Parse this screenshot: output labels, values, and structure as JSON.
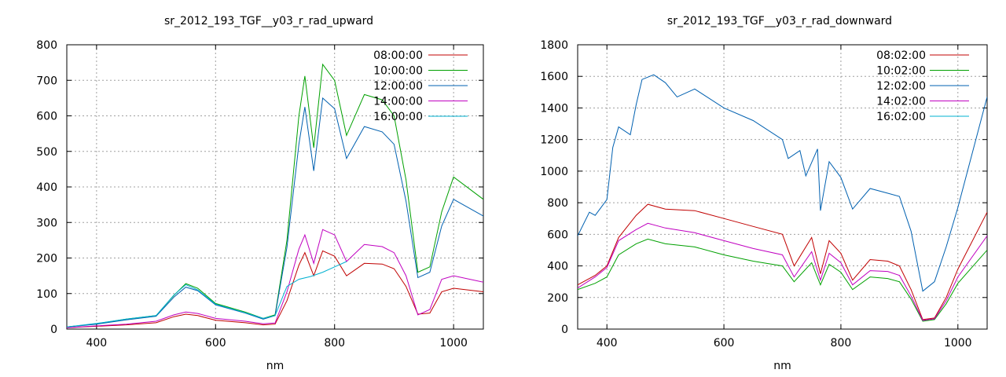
{
  "chart_data": [
    {
      "type": "line",
      "title": "sr_2012_193_TGF__y03_r_rad_upward",
      "xlabel": "nm",
      "ylabel": "",
      "xlim": [
        350,
        1050
      ],
      "ylim": [
        0,
        800
      ],
      "xticks": [
        400,
        600,
        800,
        1000
      ],
      "yticks": [
        0,
        100,
        200,
        300,
        400,
        500,
        600,
        700,
        800
      ],
      "grid": true,
      "legend": "top-right",
      "series": [
        {
          "name": "08:00:00",
          "color": "#c00000",
          "points": [
            [
              350,
              4
            ],
            [
              400,
              8
            ],
            [
              450,
              12
            ],
            [
              500,
              18
            ],
            [
              530,
              35
            ],
            [
              550,
              42
            ],
            [
              570,
              38
            ],
            [
              600,
              25
            ],
            [
              650,
              18
            ],
            [
              680,
              12
            ],
            [
              700,
              14
            ],
            [
              720,
              80
            ],
            [
              740,
              180
            ],
            [
              750,
              215
            ],
            [
              765,
              150
            ],
            [
              780,
              220
            ],
            [
              800,
              205
            ],
            [
              820,
              150
            ],
            [
              850,
              185
            ],
            [
              880,
              183
            ],
            [
              900,
              170
            ],
            [
              920,
              120
            ],
            [
              940,
              42
            ],
            [
              960,
              45
            ],
            [
              980,
              105
            ],
            [
              1000,
              115
            ],
            [
              1050,
              105
            ]
          ]
        },
        {
          "name": "10:00:00",
          "color": "#00a000",
          "points": [
            [
              350,
              6
            ],
            [
              400,
              15
            ],
            [
              450,
              28
            ],
            [
              500,
              38
            ],
            [
              530,
              95
            ],
            [
              550,
              128
            ],
            [
              570,
              115
            ],
            [
              600,
              72
            ],
            [
              650,
              48
            ],
            [
              680,
              30
            ],
            [
              700,
              40
            ],
            [
              720,
              250
            ],
            [
              740,
              600
            ],
            [
              750,
              712
            ],
            [
              765,
              510
            ],
            [
              780,
              745
            ],
            [
              800,
              700
            ],
            [
              820,
              545
            ],
            [
              850,
              660
            ],
            [
              880,
              645
            ],
            [
              900,
              600
            ],
            [
              920,
              420
            ],
            [
              940,
              160
            ],
            [
              960,
              175
            ],
            [
              980,
              330
            ],
            [
              1000,
              428
            ],
            [
              1050,
              365
            ]
          ]
        },
        {
          "name": "12:00:00",
          "color": "#0060b0",
          "points": [
            [
              350,
              6
            ],
            [
              400,
              14
            ],
            [
              450,
              26
            ],
            [
              500,
              36
            ],
            [
              530,
              90
            ],
            [
              550,
              118
            ],
            [
              570,
              108
            ],
            [
              600,
              68
            ],
            [
              650,
              45
            ],
            [
              680,
              28
            ],
            [
              700,
              38
            ],
            [
              720,
              230
            ],
            [
              740,
              520
            ],
            [
              750,
              625
            ],
            [
              765,
              445
            ],
            [
              780,
              650
            ],
            [
              800,
              620
            ],
            [
              820,
              480
            ],
            [
              850,
              570
            ],
            [
              880,
              555
            ],
            [
              900,
              520
            ],
            [
              920,
              360
            ],
            [
              940,
              145
            ],
            [
              960,
              160
            ],
            [
              980,
              290
            ],
            [
              1000,
              365
            ],
            [
              1050,
              318
            ]
          ]
        },
        {
          "name": "14:00:00",
          "color": "#c000c0",
          "points": [
            [
              350,
              4
            ],
            [
              400,
              9
            ],
            [
              450,
              14
            ],
            [
              500,
              22
            ],
            [
              530,
              40
            ],
            [
              550,
              48
            ],
            [
              570,
              44
            ],
            [
              600,
              30
            ],
            [
              650,
              22
            ],
            [
              680,
              15
            ],
            [
              700,
              17
            ],
            [
              720,
              105
            ],
            [
              740,
              225
            ],
            [
              750,
              265
            ],
            [
              765,
              185
            ],
            [
              780,
              280
            ],
            [
              800,
              265
            ],
            [
              820,
              190
            ],
            [
              850,
              238
            ],
            [
              880,
              232
            ],
            [
              900,
              215
            ],
            [
              920,
              150
            ],
            [
              940,
              40
            ],
            [
              960,
              55
            ],
            [
              980,
              140
            ],
            [
              1000,
              150
            ],
            [
              1050,
              132
            ]
          ]
        },
        {
          "name": "16:00:00",
          "color": "#00b0d0",
          "points": [
            [
              350,
              6
            ],
            [
              400,
              16
            ],
            [
              450,
              28
            ],
            [
              500,
              38
            ],
            [
              530,
              96
            ],
            [
              550,
              125
            ],
            [
              570,
              110
            ],
            [
              600,
              70
            ],
            [
              650,
              46
            ],
            [
              680,
              30
            ],
            [
              700,
              38
            ],
            [
              720,
              120
            ],
            [
              740,
              140
            ],
            [
              760,
              148
            ],
            [
              780,
              160
            ],
            [
              800,
              175
            ],
            [
              820,
              190
            ]
          ]
        }
      ]
    },
    {
      "type": "line",
      "title": "sr_2012_193_TGF__y03_r_rad_downward",
      "xlabel": "nm",
      "ylabel": "",
      "xlim": [
        350,
        1050
      ],
      "ylim": [
        0,
        1800
      ],
      "xticks": [
        400,
        600,
        800,
        1000
      ],
      "yticks": [
        0,
        200,
        400,
        600,
        800,
        1000,
        1200,
        1400,
        1600,
        1800
      ],
      "grid": true,
      "legend": "top-right",
      "series": [
        {
          "name": "08:02:00",
          "color": "#c00000",
          "points": [
            [
              350,
              280
            ],
            [
              380,
              340
            ],
            [
              400,
              400
            ],
            [
              420,
              580
            ],
            [
              450,
              720
            ],
            [
              470,
              790
            ],
            [
              500,
              760
            ],
            [
              550,
              750
            ],
            [
              600,
              700
            ],
            [
              650,
              650
            ],
            [
              700,
              600
            ],
            [
              720,
              400
            ],
            [
              750,
              580
            ],
            [
              765,
              350
            ],
            [
              780,
              560
            ],
            [
              800,
              480
            ],
            [
              820,
              310
            ],
            [
              850,
              440
            ],
            [
              880,
              430
            ],
            [
              900,
              400
            ],
            [
              920,
              250
            ],
            [
              940,
              60
            ],
            [
              960,
              70
            ],
            [
              980,
              200
            ],
            [
              1000,
              380
            ],
            [
              1050,
              740
            ]
          ]
        },
        {
          "name": "10:02:00",
          "color": "#00a000",
          "points": [
            [
              350,
              250
            ],
            [
              380,
              290
            ],
            [
              400,
              330
            ],
            [
              420,
              470
            ],
            [
              450,
              540
            ],
            [
              470,
              570
            ],
            [
              500,
              540
            ],
            [
              550,
              520
            ],
            [
              600,
              470
            ],
            [
              650,
              430
            ],
            [
              700,
              400
            ],
            [
              720,
              300
            ],
            [
              750,
              420
            ],
            [
              765,
              280
            ],
            [
              780,
              410
            ],
            [
              800,
              360
            ],
            [
              820,
              250
            ],
            [
              850,
              330
            ],
            [
              880,
              320
            ],
            [
              900,
              300
            ],
            [
              920,
              190
            ],
            [
              940,
              50
            ],
            [
              960,
              60
            ],
            [
              980,
              160
            ],
            [
              1000,
              290
            ],
            [
              1050,
              500
            ]
          ]
        },
        {
          "name": "12:02:00",
          "color": "#0060b0",
          "points": [
            [
              350,
              590
            ],
            [
              370,
              740
            ],
            [
              380,
              720
            ],
            [
              400,
              820
            ],
            [
              410,
              1150
            ],
            [
              420,
              1280
            ],
            [
              440,
              1230
            ],
            [
              450,
              1420
            ],
            [
              460,
              1580
            ],
            [
              480,
              1610
            ],
            [
              500,
              1560
            ],
            [
              520,
              1470
            ],
            [
              550,
              1520
            ],
            [
              600,
              1400
            ],
            [
              650,
              1320
            ],
            [
              700,
              1200
            ],
            [
              710,
              1080
            ],
            [
              730,
              1130
            ],
            [
              740,
              970
            ],
            [
              760,
              1140
            ],
            [
              765,
              750
            ],
            [
              780,
              1060
            ],
            [
              800,
              960
            ],
            [
              820,
              760
            ],
            [
              850,
              890
            ],
            [
              880,
              860
            ],
            [
              900,
              840
            ],
            [
              920,
              620
            ],
            [
              940,
              240
            ],
            [
              960,
              300
            ],
            [
              980,
              520
            ],
            [
              1000,
              770
            ],
            [
              1050,
              1470
            ]
          ]
        },
        {
          "name": "14:02:00",
          "color": "#c000c0",
          "points": [
            [
              350,
              260
            ],
            [
              380,
              330
            ],
            [
              400,
              390
            ],
            [
              420,
              560
            ],
            [
              450,
              630
            ],
            [
              470,
              670
            ],
            [
              500,
              640
            ],
            [
              550,
              610
            ],
            [
              600,
              560
            ],
            [
              650,
              510
            ],
            [
              700,
              470
            ],
            [
              720,
              330
            ],
            [
              750,
              490
            ],
            [
              765,
              310
            ],
            [
              780,
              480
            ],
            [
              800,
              420
            ],
            [
              820,
              280
            ],
            [
              850,
              370
            ],
            [
              880,
              365
            ],
            [
              900,
              340
            ],
            [
              920,
              210
            ],
            [
              940,
              55
            ],
            [
              960,
              65
            ],
            [
              980,
              180
            ],
            [
              1000,
              330
            ],
            [
              1050,
              590
            ]
          ]
        },
        {
          "name": "16:02:00",
          "color": "#00b0d0",
          "points": []
        }
      ]
    }
  ]
}
